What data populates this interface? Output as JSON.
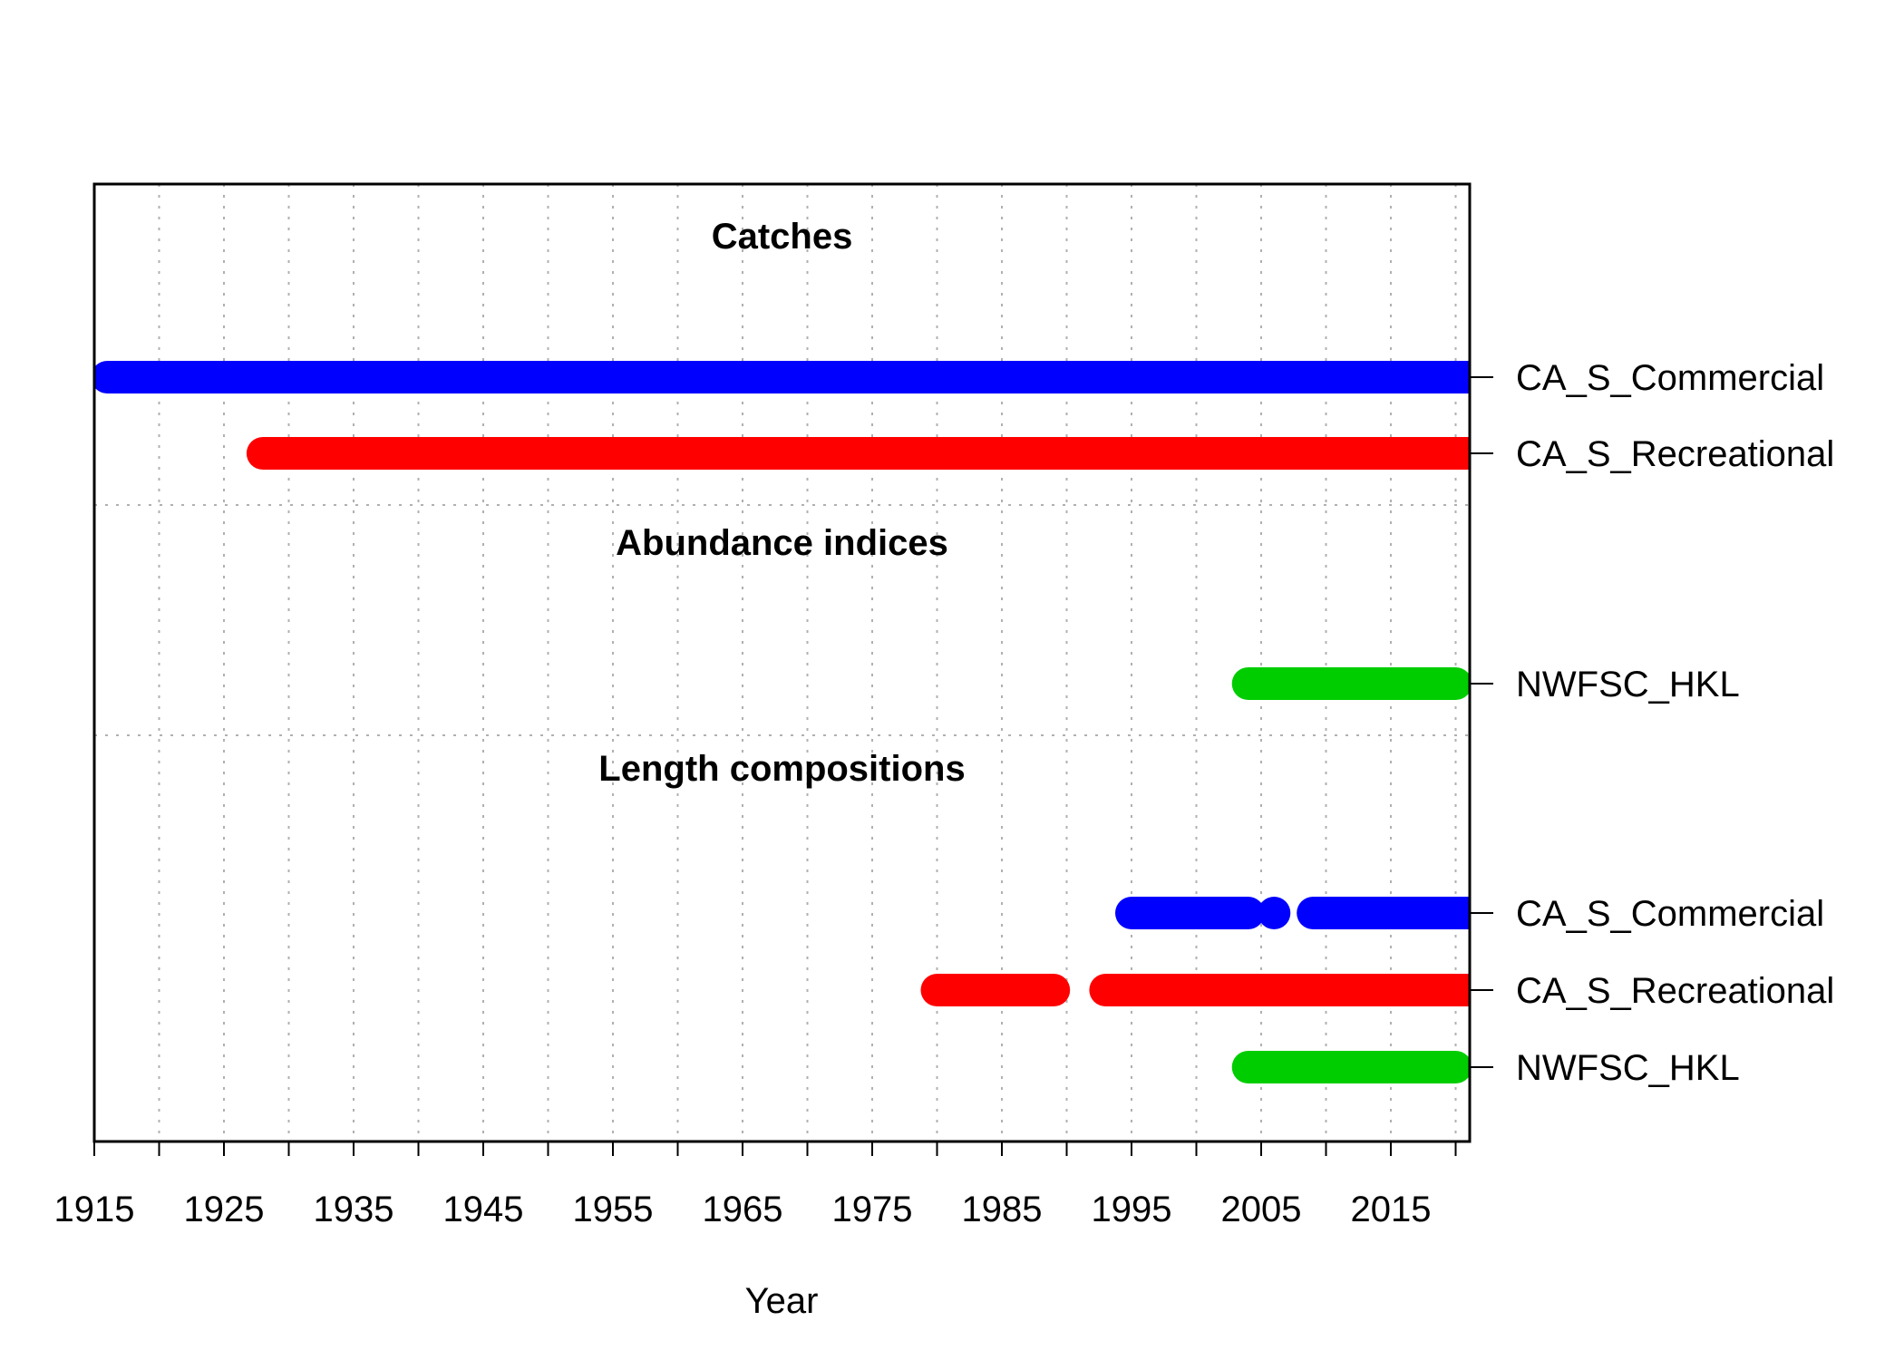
{
  "chart_data": {
    "type": "timeline",
    "xlabel": "Year",
    "xlim": [
      1915,
      2021
    ],
    "x_ticks": [
      1915,
      1925,
      1935,
      1945,
      1955,
      1965,
      1975,
      1985,
      1995,
      2005,
      2015
    ],
    "x_minor_ticks": [
      1915,
      1920,
      1925,
      1930,
      1935,
      1940,
      1945,
      1950,
      1955,
      1960,
      1965,
      1970,
      1975,
      1980,
      1985,
      1990,
      1995,
      2000,
      2005,
      2010,
      2015,
      2020
    ],
    "grid": true,
    "sections": [
      {
        "title": "Catches",
        "rows": [
          {
            "label": "CA_S_Commercial",
            "color": "#0000ff",
            "segments": [
              [
                1916,
                2021
              ]
            ]
          },
          {
            "label": "CA_S_Recreational",
            "color": "#ff0000",
            "segments": [
              [
                1928,
                2021
              ]
            ]
          }
        ]
      },
      {
        "title": "Abundance indices",
        "rows": [
          {
            "label": "NWFSC_HKL",
            "color": "#00cd00",
            "segments": [
              [
                2004,
                2020
              ]
            ]
          }
        ]
      },
      {
        "title": "Length compositions",
        "rows": [
          {
            "label": "CA_S_Commercial",
            "color": "#0000ff",
            "segments": [
              [
                1995,
                2004
              ],
              [
                2006,
                2006
              ],
              [
                2009,
                2021
              ]
            ]
          },
          {
            "label": "CA_S_Recreational",
            "color": "#ff0000",
            "segments": [
              [
                1980,
                1989
              ],
              [
                1993,
                2021
              ]
            ]
          },
          {
            "label": "NWFSC_HKL",
            "color": "#00cd00",
            "segments": [
              [
                2004,
                2020
              ]
            ]
          }
        ]
      }
    ]
  }
}
